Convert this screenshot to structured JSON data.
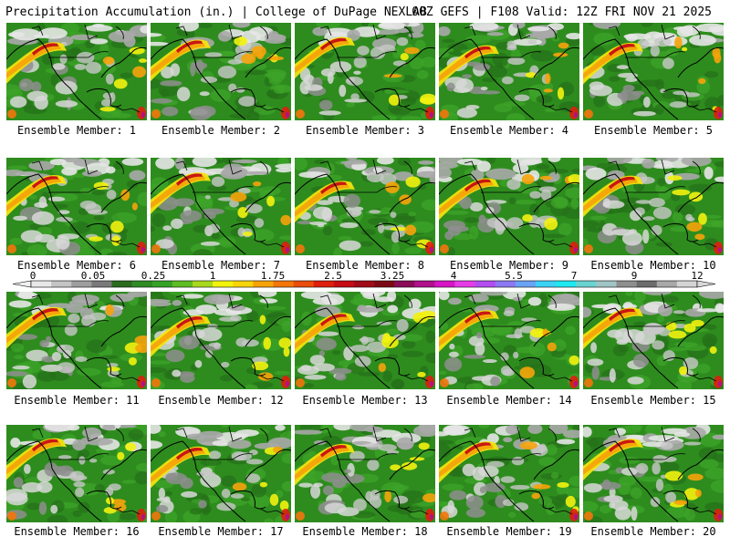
{
  "header": {
    "left": "Precipitation Accumulation (in.) | College of DuPage NEXLAB",
    "right": "00Z GEFS | F108 Valid: 12Z FRI NOV 21 2025"
  },
  "colorbar": {
    "labels": [
      "0",
      "0.05",
      "0.25",
      "1",
      "1.75",
      "2.5",
      "3.25",
      "4",
      "5.5",
      "7",
      "9",
      "12"
    ],
    "colors": [
      "#e8e8e8",
      "#c4c4c4",
      "#9e9e9e",
      "#7a7a7a",
      "#2b6b1e",
      "#2f8a22",
      "#36a326",
      "#5ebc24",
      "#a8d81c",
      "#f2f20e",
      "#f8d40a",
      "#f6a30a",
      "#f3760b",
      "#ea4d0c",
      "#de1e0e",
      "#c60d14",
      "#a00b18",
      "#7c0816",
      "#8a0c58",
      "#b0108c",
      "#d616c4",
      "#e63ce8",
      "#b24df0",
      "#8c78f2",
      "#6aa2f4",
      "#3cd2f6",
      "#1ee8f0",
      "#6ad4d0",
      "#a0c4c4",
      "#8e8e8e",
      "#6c6c6c",
      "#a8a8a8",
      "#d4d4d4"
    ]
  },
  "panels": [
    {
      "caption": "Ensemble Member: 1"
    },
    {
      "caption": "Ensemble Member: 2"
    },
    {
      "caption": "Ensemble Member: 3"
    },
    {
      "caption": "Ensemble Member: 4"
    },
    {
      "caption": "Ensemble Member: 5"
    },
    {
      "caption": "Ensemble Member: 6"
    },
    {
      "caption": "Ensemble Member: 7"
    },
    {
      "caption": "Ensemble Member: 8"
    },
    {
      "caption": "Ensemble Member: 9"
    },
    {
      "caption": "Ensemble Member: 10"
    },
    {
      "caption": "Ensemble Member: 11"
    },
    {
      "caption": "Ensemble Member: 12"
    },
    {
      "caption": "Ensemble Member: 13"
    },
    {
      "caption": "Ensemble Member: 14"
    },
    {
      "caption": "Ensemble Member: 15"
    },
    {
      "caption": "Ensemble Member: 16"
    },
    {
      "caption": "Ensemble Member: 17"
    },
    {
      "caption": "Ensemble Member: 18"
    },
    {
      "caption": "Ensemble Member: 19"
    },
    {
      "caption": "Ensemble Member: 20"
    }
  ]
}
